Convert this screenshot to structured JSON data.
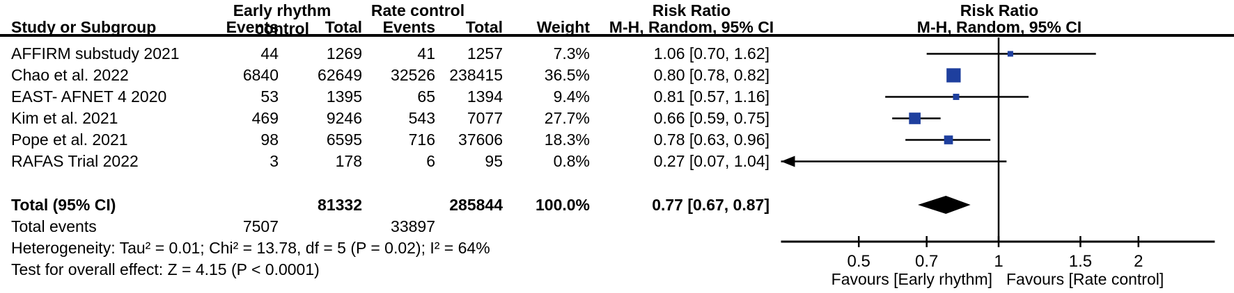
{
  "header": {
    "group_early": "Early rhythm control",
    "group_rate": "Rate control",
    "risk_ratio_left": "Risk Ratio",
    "risk_ratio_right": "Risk Ratio",
    "study_col": "Study or Subgroup",
    "events_col_1": "Events",
    "total_col_1": "Total",
    "events_col_2": "Events",
    "total_col_2": "Total",
    "weight_col": "Weight",
    "mh_left": "M-H, Random, 95% CI",
    "mh_right": "M-H, Random, 95% CI"
  },
  "chart_data": {
    "type": "forest",
    "x_scale": "log10",
    "effect_measure": "Risk Ratio",
    "method": "M-H, Random, 95% CI",
    "axis": {
      "tick_values": [
        0.5,
        0.7,
        1,
        1.5,
        2
      ],
      "tick_labels": [
        "0.5",
        "0.7",
        "1",
        "1.5",
        "2"
      ],
      "domain_min": 0.34,
      "domain_max": 2.92,
      "null_line": 1
    },
    "favours_left": "Favours [Early rhythm]",
    "favours_right": "Favours [Rate control]",
    "studies": [
      {
        "name": "AFFIRM substudy 2021",
        "erc_events": "44",
        "erc_total": "1269",
        "rc_events": "41",
        "rc_total": "1257",
        "weight": "7.3%",
        "weight_pct": 7.3,
        "rr": 1.06,
        "ci_low": 0.7,
        "ci_high": 1.62,
        "rr_text": "1.06 [0.70, 1.62]"
      },
      {
        "name": "Chao et al. 2022",
        "erc_events": "6840",
        "erc_total": "62649",
        "rc_events": "32526",
        "rc_total": "238415",
        "weight": "36.5%",
        "weight_pct": 36.5,
        "rr": 0.8,
        "ci_low": 0.78,
        "ci_high": 0.82,
        "rr_text": "0.80 [0.78, 0.82]"
      },
      {
        "name": "EAST- AFNET 4 2020",
        "erc_events": "53",
        "erc_total": "1395",
        "rc_events": "65",
        "rc_total": "1394",
        "weight": "9.4%",
        "weight_pct": 9.4,
        "rr": 0.81,
        "ci_low": 0.57,
        "ci_high": 1.16,
        "rr_text": "0.81 [0.57, 1.16]"
      },
      {
        "name": "Kim et al. 2021",
        "erc_events": "469",
        "erc_total": "9246",
        "rc_events": "543",
        "rc_total": "7077",
        "weight": "27.7%",
        "weight_pct": 27.7,
        "rr": 0.66,
        "ci_low": 0.59,
        "ci_high": 0.75,
        "rr_text": "0.66 [0.59, 0.75]"
      },
      {
        "name": "Pope et al. 2021",
        "erc_events": "98",
        "erc_total": "6595",
        "rc_events": "716",
        "rc_total": "37606",
        "weight": "18.3%",
        "weight_pct": 18.3,
        "rr": 0.78,
        "ci_low": 0.63,
        "ci_high": 0.96,
        "rr_text": "0.78 [0.63, 0.96]"
      },
      {
        "name": "RAFAS Trial 2022",
        "erc_events": "3",
        "erc_total": "178",
        "rc_events": "6",
        "rc_total": "95",
        "weight": "0.8%",
        "weight_pct": 0.8,
        "rr": 0.27,
        "ci_low": 0.07,
        "ci_high": 1.04,
        "rr_text": "0.27 [0.07, 1.04]"
      }
    ],
    "total": {
      "label": "Total (95% CI)",
      "erc_total": "81332",
      "rc_total": "285844",
      "weight": "100.0%",
      "rr": 0.77,
      "ci_low": 0.67,
      "ci_high": 0.87,
      "rr_text": "0.77 [0.67, 0.87]"
    },
    "total_events": {
      "label": "Total events",
      "erc": "7507",
      "rc": "33897"
    },
    "heterogeneity": "Heterogeneity: Tau² = 0.01; Chi² = 13.78, df = 5 (P = 0.02); I² = 64%",
    "overall_effect": "Test for overall effect: Z = 4.15 (P < 0.0001)"
  },
  "colors": {
    "marker_blue": "#1e3f9e",
    "line_black": "#000000",
    "background": "#ffffff"
  }
}
